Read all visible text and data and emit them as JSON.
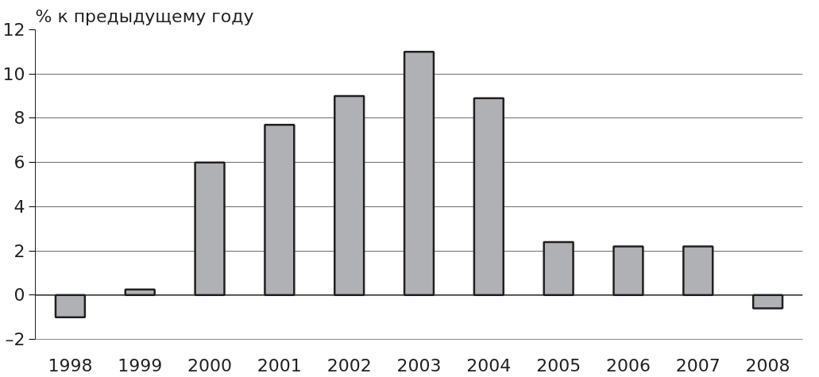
{
  "chart_data": {
    "type": "bar",
    "ylabel": "% к предыдущему году",
    "categories": [
      "1998",
      "1999",
      "2000",
      "2001",
      "2002",
      "2003",
      "2004",
      "2005",
      "2006",
      "2007",
      "2008"
    ],
    "values": [
      -1.0,
      0.25,
      6.0,
      7.7,
      9.0,
      11.0,
      8.9,
      2.4,
      2.2,
      2.2,
      -0.6
    ],
    "color": "#b0b1b4",
    "ylim": [
      -2,
      12
    ],
    "yticks": [
      {
        "value": -2,
        "label": "–2"
      },
      0,
      2,
      4,
      6,
      8,
      10,
      12
    ],
    "grid": "y"
  }
}
